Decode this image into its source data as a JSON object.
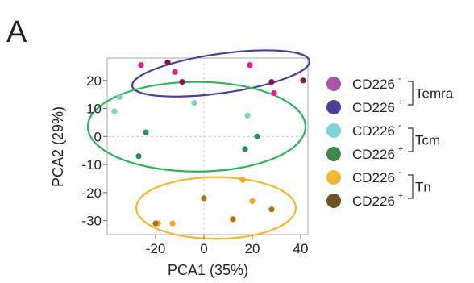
{
  "panel_label": "A",
  "chart_data": {
    "type": "scatter",
    "xlabel": "PCA1 (35%)",
    "ylabel": "PCA2 (29%)",
    "xlim": [
      -40,
      43
    ],
    "ylim": [
      -35,
      28
    ],
    "x_ticks": [
      -20,
      0,
      20,
      40
    ],
    "y_ticks": [
      20,
      10,
      0,
      -10,
      -20,
      -30
    ],
    "grid": "dashed zero lines",
    "legend_position": "right",
    "series": [
      {
        "name": "Temra CD226-",
        "color": "#e0228f",
        "points": [
          [
            -26,
            25.5
          ],
          [
            -12,
            23
          ],
          [
            19,
            25.5
          ],
          [
            29,
            15.5
          ]
        ]
      },
      {
        "name": "Temra CD226+",
        "color": "#8a1450",
        "points": [
          [
            -15,
            26.5
          ],
          [
            -9,
            19.5
          ],
          [
            28,
            19.5
          ],
          [
            41,
            20
          ]
        ]
      },
      {
        "name": "Tcm CD226-",
        "color": "#7fd3c3",
        "points": [
          [
            -37,
            9
          ],
          [
            -35,
            14
          ],
          [
            -4,
            12
          ],
          [
            18,
            7.5
          ]
        ]
      },
      {
        "name": "Tcm CD226+",
        "color": "#2a8a6e",
        "points": [
          [
            -24,
            1.5
          ],
          [
            -27,
            -7
          ],
          [
            17,
            -4.5
          ],
          [
            22,
            0
          ]
        ]
      },
      {
        "name": "Tn CD226-",
        "color": "#f5a623",
        "points": [
          [
            -19,
            -31
          ],
          [
            -13,
            -31
          ],
          [
            16,
            -15.5
          ],
          [
            20,
            -23
          ]
        ]
      },
      {
        "name": "Tn CD226+",
        "color": "#b07412",
        "points": [
          [
            -20,
            -31
          ],
          [
            0,
            -22
          ],
          [
            12,
            -29.5
          ],
          [
            28,
            -26
          ]
        ]
      }
    ],
    "ellipses": [
      {
        "group": "Temra",
        "color": "#4e3d9a",
        "cx": 7,
        "cy": 22.5,
        "rx": 37,
        "ry": 7,
        "angle": -8
      },
      {
        "group": "Tcm",
        "color": "#2db35a",
        "cx": -3,
        "cy": 3.5,
        "rx": 45,
        "ry": 16,
        "angle": 0
      },
      {
        "group": "Tn",
        "color": "#f5b731",
        "cx": 5,
        "cy": -25.5,
        "rx": 33,
        "ry": 11,
        "angle": 0
      }
    ],
    "legend": {
      "entries": [
        {
          "label": "CD226",
          "sup": "-",
          "color": "#a855a8"
        },
        {
          "label": "CD226",
          "sup": "+",
          "color": "#4e3d9a"
        },
        {
          "label": "CD226",
          "sup": "-",
          "color": "#7fd3d8"
        },
        {
          "label": "CD226",
          "sup": "+",
          "color": "#3f8a4a"
        },
        {
          "label": "CD226",
          "sup": "-",
          "color": "#f5b731"
        },
        {
          "label": "CD226",
          "sup": "+",
          "color": "#705221"
        }
      ],
      "groups": [
        "Temra",
        "Tcm",
        "Tn"
      ]
    }
  }
}
